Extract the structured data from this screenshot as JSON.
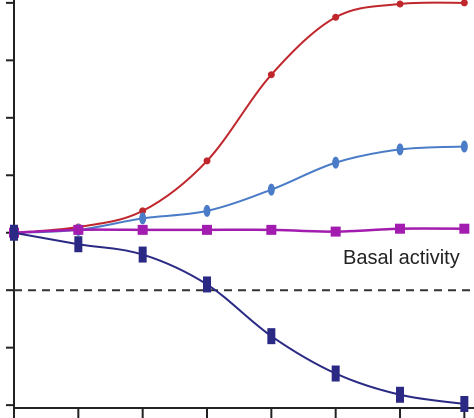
{
  "chart_data": {
    "type": "line",
    "title": "",
    "xlabel": "",
    "ylabel": "",
    "x": [
      0,
      1,
      2,
      3,
      4,
      5,
      6,
      7
    ],
    "xlim": [
      0,
      7.15
    ],
    "ylim": [
      -3.05,
      4.05
    ],
    "grid": false,
    "annotation": "Basal activity",
    "reference_line": {
      "y": -1,
      "style": "dashed",
      "color": "#333333"
    },
    "series": [
      {
        "color": "#c0272d",
        "marker": "circle",
        "values": [
          0,
          0.1,
          0.38,
          1.25,
          2.75,
          3.75,
          3.98,
          4.0
        ]
      },
      {
        "color": "#4a7cc7",
        "marker": "ellipse",
        "values": [
          0,
          0.05,
          0.25,
          0.38,
          0.75,
          1.22,
          1.45,
          1.5
        ]
      },
      {
        "color": "#a21caf",
        "marker": "square",
        "values": [
          0,
          0.05,
          0.05,
          0.05,
          0.05,
          0.02,
          0.07,
          0.07
        ]
      },
      {
        "color": "#2a2a85",
        "marker": "bar",
        "values": [
          0,
          -0.2,
          -0.38,
          -0.9,
          -1.8,
          -2.45,
          -2.82,
          -2.98
        ]
      }
    ]
  }
}
